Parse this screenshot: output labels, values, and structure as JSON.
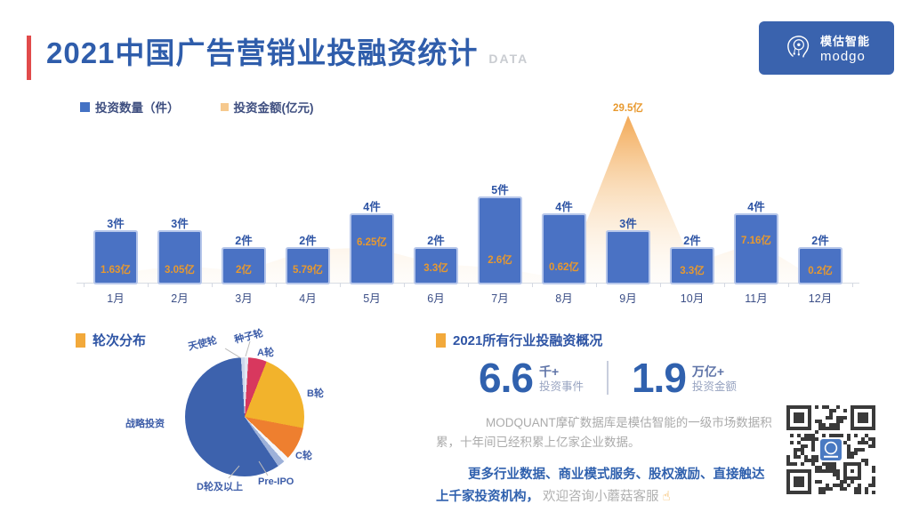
{
  "header": {
    "title": "2021中国广告营销业投融资统计",
    "title_suffix": "DATA",
    "logo": {
      "brand_cn": "模估智能",
      "brand_en": "modgo",
      "bg_color": "#3a63ae"
    }
  },
  "legend": [
    {
      "label": "投资数量（件）",
      "color": "#4472c4"
    },
    {
      "label": "投资金额(亿元)",
      "color": "#f6c98e"
    }
  ],
  "chart_data": [
    {
      "type": "bar",
      "title": "2021中国广告营销业投融资统计",
      "categories": [
        "1月",
        "2月",
        "3月",
        "4月",
        "5月",
        "6月",
        "7月",
        "8月",
        "9月",
        "10月",
        "11月",
        "12月"
      ],
      "series": [
        {
          "name": "投资数量（件）",
          "type": "bar",
          "color": "#4a72c4",
          "values": [
            3,
            3,
            2,
            2,
            4,
            2,
            5,
            4,
            3,
            2,
            4,
            2
          ],
          "labels": [
            "3件",
            "3件",
            "2件",
            "2件",
            "4件",
            "2件",
            "5件",
            "4件",
            "3件",
            "2件",
            "4件",
            "2件"
          ]
        },
        {
          "name": "投资金额(亿元)",
          "type": "area",
          "color": "#f2a44c",
          "values": [
            1.63,
            3.05,
            2,
            5.79,
            6.25,
            3.3,
            2.6,
            0.62,
            29.5,
            3.3,
            7.16,
            0.2
          ],
          "labels": [
            "1.63亿",
            "3.05亿",
            "2亿",
            "5.79亿",
            "6.25亿",
            "3.3亿",
            "2.6亿",
            "0.62亿",
            "29.5亿",
            "3.3亿",
            "7.16亿",
            "0.2亿"
          ]
        }
      ],
      "ylim": [
        0,
        29.5
      ],
      "grid": false,
      "legend_position": "top-left"
    },
    {
      "type": "pie",
      "title": "轮次分布",
      "slices": [
        {
          "label": "种子轮",
          "value": 1,
          "color": "#e3e8f2"
        },
        {
          "label": "A轮",
          "value": 5,
          "color": "#d8385e"
        },
        {
          "label": "B轮",
          "value": 22,
          "color": "#f2b32c"
        },
        {
          "label": "C轮",
          "value": 9,
          "color": "#ee7f2f"
        },
        {
          "label": "Pre-IPO",
          "value": 1.5,
          "color": "#f4f6fa"
        },
        {
          "label": "D轮及以上",
          "value": 2,
          "color": "#9db1d9"
        },
        {
          "label": "战略投资",
          "value": 58.5,
          "color": "#3d62ad"
        },
        {
          "label": "天使轮",
          "value": 1,
          "color": "#cdd8ec"
        }
      ],
      "legend_position": "none"
    }
  ],
  "summary": {
    "heading": "2021所有行业投融资概况",
    "stats": [
      {
        "value": "6.6",
        "unit": "千+",
        "label": "投资事件"
      },
      {
        "value": "1.9",
        "unit": "万亿+",
        "label": "投资金额"
      }
    ],
    "desc": "MODQUANT摩矿数据库是模估智能的一级市场数据积累，十年间已经积累上亿家企业数据。",
    "promo_bold": "更多行业数据、商业模式服务、股权激励、直接触达上千家投资机构，",
    "promo_gray": "欢迎咨询小蘑菇客服",
    "hand_icon": "☝"
  },
  "colors": {
    "title_blue": "#2f5dab",
    "bar_blue": "#4a72c4",
    "amount_orange": "#e8992e",
    "area_orange": "#f2a44c",
    "accent_red": "#e14b4b",
    "marker_orange": "#f2a93b"
  }
}
